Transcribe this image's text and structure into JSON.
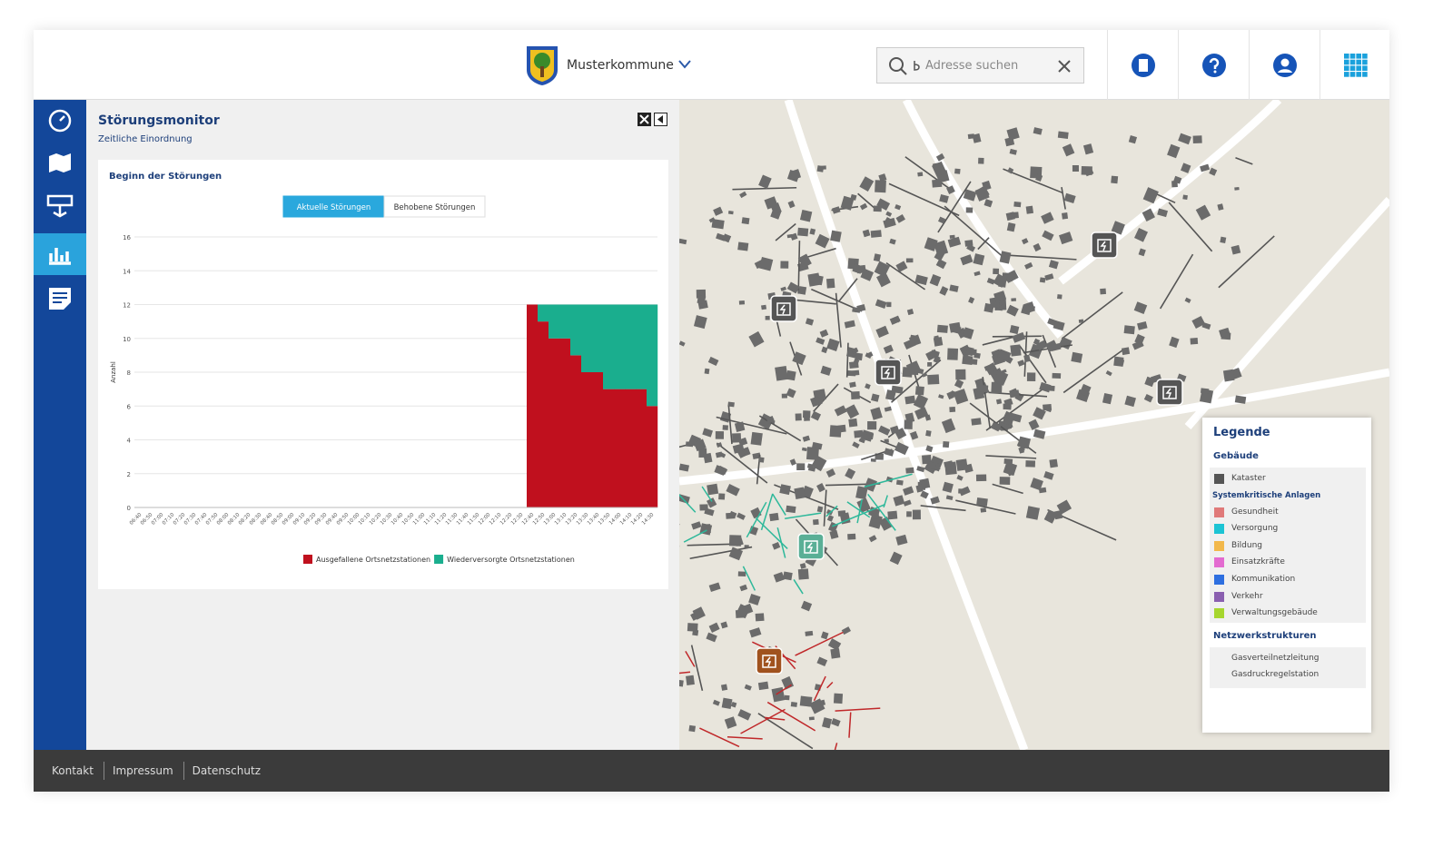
{
  "header": {
    "municipality": "Musterkommune",
    "search_placeholder": "Adresse suchen"
  },
  "panel": {
    "title": "Störungsmonitor",
    "subtitle": "Zeitliche Einordnung"
  },
  "chart_data": {
    "type": "bar",
    "stacked": true,
    "title": "Beginn der Störungen",
    "tabs": [
      "Aktuelle Störungen",
      "Behobene Störungen"
    ],
    "ylabel": "Anzahl",
    "categories": [
      "06:40",
      "06:50",
      "07:00",
      "07:10",
      "07:20",
      "07:30",
      "07:40",
      "07:50",
      "08:00",
      "08:10",
      "08:20",
      "08:30",
      "08:40",
      "08:50",
      "09:00",
      "09:10",
      "09:20",
      "09:30",
      "09:40",
      "09:50",
      "10:00",
      "10:10",
      "10:20",
      "10:30",
      "10:40",
      "10:50",
      "11:00",
      "11:10",
      "11:20",
      "11:30",
      "11:40",
      "11:50",
      "12:00",
      "12:10",
      "12:20",
      "12:30",
      "12:40",
      "12:50",
      "13:00",
      "13:10",
      "13:20",
      "13:30",
      "13:40",
      "13:50",
      "14:00",
      "14:10",
      "14:20",
      "14:30"
    ],
    "series": [
      {
        "name": "Ausgefallene Ortsnetzstationen",
        "color": "#c0101e",
        "values": [
          0,
          0,
          0,
          0,
          0,
          0,
          0,
          0,
          0,
          0,
          0,
          0,
          0,
          0,
          0,
          0,
          0,
          0,
          0,
          0,
          0,
          0,
          0,
          0,
          0,
          0,
          0,
          0,
          0,
          0,
          0,
          0,
          0,
          0,
          0,
          0,
          12,
          11,
          10,
          10,
          9,
          8,
          8,
          7,
          7,
          7,
          7,
          6
        ]
      },
      {
        "name": "Wiederversorgte Ortsnetzstationen",
        "color": "#1aae8e",
        "values": [
          0,
          0,
          0,
          0,
          0,
          0,
          0,
          0,
          0,
          0,
          0,
          0,
          0,
          0,
          0,
          0,
          0,
          0,
          0,
          0,
          0,
          0,
          0,
          0,
          0,
          0,
          0,
          0,
          0,
          0,
          0,
          0,
          0,
          0,
          0,
          0,
          0,
          1,
          2,
          2,
          3,
          4,
          4,
          5,
          5,
          5,
          5,
          6
        ]
      }
    ],
    "ylim": [
      0,
      16
    ],
    "yticks": [
      0,
      2,
      4,
      6,
      8,
      10,
      12,
      14,
      16
    ],
    "grid": true
  },
  "legend": {
    "title": "Legende",
    "buildings": {
      "title": "Gebäude",
      "items": [
        {
          "label": "Kataster",
          "color": "#555555"
        }
      ],
      "group": "Systemkritische Anlagen",
      "group_items": [
        {
          "label": "Gesundheit",
          "color": "#e07a7a"
        },
        {
          "label": "Versorgung",
          "color": "#1cc4d4"
        },
        {
          "label": "Bildung",
          "color": "#f2b84b"
        },
        {
          "label": "Einsatzkräfte",
          "color": "#e36bd0"
        },
        {
          "label": "Kommunikation",
          "color": "#2e6fe0"
        },
        {
          "label": "Verkehr",
          "color": "#8a5fb0"
        },
        {
          "label": "Verwaltungsgebäude",
          "color": "#a6d62e"
        }
      ]
    },
    "networks": {
      "title": "Netzwerkstrukturen",
      "items": [
        {
          "label": "Gasverteilnetzleitung"
        },
        {
          "label": "Gasdruckregelstation"
        }
      ]
    }
  },
  "footer": {
    "links": [
      "Kontakt",
      "Impressum",
      "Datenschutz"
    ]
  }
}
